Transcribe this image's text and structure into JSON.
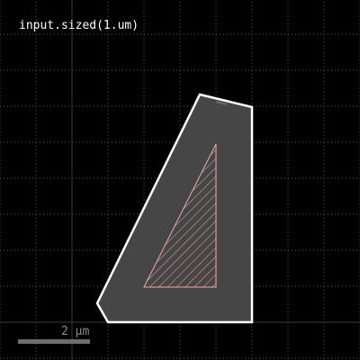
{
  "caption": "input.sized(1.um)",
  "scale_bar": {
    "label": "2 µm"
  },
  "colors": {
    "background": "#000000",
    "grid_dot": "#5a5a5a",
    "axis_line": "#3a3a3a",
    "outer_fill": "#464646",
    "outer_stroke": "#ffffff",
    "inner_stroke": "#f0a8a8",
    "hatch": "#f0a8a8",
    "scale_bar": "#6e6e6e",
    "scale_text": "#8c8c8c"
  }
}
